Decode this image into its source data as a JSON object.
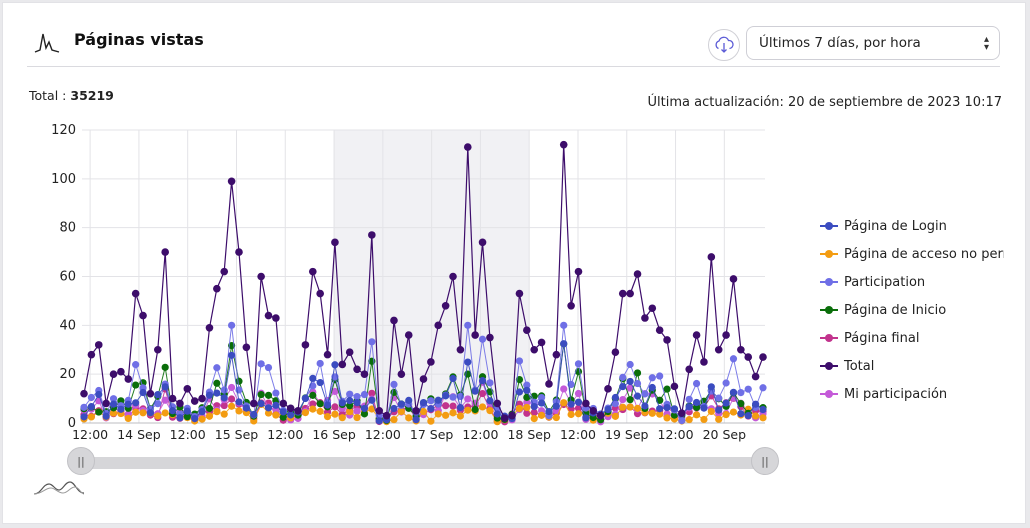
{
  "header": {
    "title": "Páginas vistas",
    "range_select": {
      "selected": "Últimos 7 días, por hora"
    }
  },
  "summary": {
    "total_label": "Total :",
    "total_value": "35219",
    "updated_label": "Última actualización: 20 de septiembre de 2023 10:17"
  },
  "icons": {
    "header": "line-chart-icon",
    "download": "cloud-download-icon",
    "caret": "select-caret-icon",
    "navigator": "navigator-preview-icon"
  },
  "chart_data": {
    "type": "line",
    "title": "",
    "xlabel": "",
    "ylabel": "",
    "ylim": [
      0,
      120
    ],
    "yticks": [
      0,
      20,
      40,
      60,
      80,
      100,
      120
    ],
    "grid": true,
    "legend_placement": "right",
    "x_unit": "hour",
    "x_start": "2023-09-13 10:00",
    "x_end": "2023-09-20 10:00",
    "xtick_labels": [
      "12:00",
      "14 Sep",
      "12:00",
      "15 Sep",
      "12:00",
      "16 Sep",
      "12:00",
      "17 Sep",
      "12:00",
      "18 Sep",
      "12:00",
      "19 Sep",
      "12:00",
      "20 Sep"
    ],
    "weekend_band": [
      "2023-09-16 00:00",
      "2023-09-18 00:00"
    ],
    "series": [
      {
        "name": "Página de Login",
        "color": "#3b4cc0"
      },
      {
        "name": "Página de acceso no permitido",
        "color": "#f39c12"
      },
      {
        "name": "Participation",
        "color": "#6f6fe6"
      },
      {
        "name": "Página de Inicio",
        "color": "#0a6e0a"
      },
      {
        "name": "Página final",
        "color": "#c2338d"
      },
      {
        "name": "Total",
        "color": "#3d0d6b"
      },
      {
        "name": "Mi participación",
        "color": "#c45ad8"
      }
    ],
    "total_series_values": [
      12,
      28,
      32,
      8,
      20,
      21,
      18,
      53,
      44,
      12,
      30,
      70,
      10,
      8,
      14,
      9,
      10,
      39,
      55,
      62,
      99,
      70,
      31,
      8,
      60,
      44,
      43,
      8,
      6,
      5,
      32,
      62,
      53,
      28,
      74,
      24,
      29,
      22,
      20,
      77,
      5,
      3,
      42,
      20,
      36,
      5,
      18,
      25,
      40,
      48,
      60,
      30,
      113,
      36,
      74,
      35,
      8,
      2,
      3,
      53,
      38,
      30,
      33,
      16,
      28,
      114,
      48,
      62,
      8,
      5,
      3,
      14,
      29,
      53,
      53,
      61,
      43,
      47,
      38,
      34,
      15,
      4,
      22,
      36,
      25,
      68,
      30,
      36,
      59,
      30,
      27,
      19,
      27
    ]
  },
  "legend": {
    "items": [
      {
        "label": "Página de Login",
        "color": "#3b4cc0"
      },
      {
        "label": "Página de acceso no permitido",
        "color": "#f39c12"
      },
      {
        "label": "Participation",
        "color": "#6f6fe6"
      },
      {
        "label": "Página de Inicio",
        "color": "#0a6e0a"
      },
      {
        "label": "Página final",
        "color": "#c2338d"
      },
      {
        "label": "Total",
        "color": "#3d0d6b"
      },
      {
        "label": "Mi participación",
        "color": "#c45ad8"
      }
    ]
  },
  "navigator": {
    "range_start": 0.0,
    "range_end": 1.0,
    "handle_left": "||",
    "handle_right": "||"
  }
}
